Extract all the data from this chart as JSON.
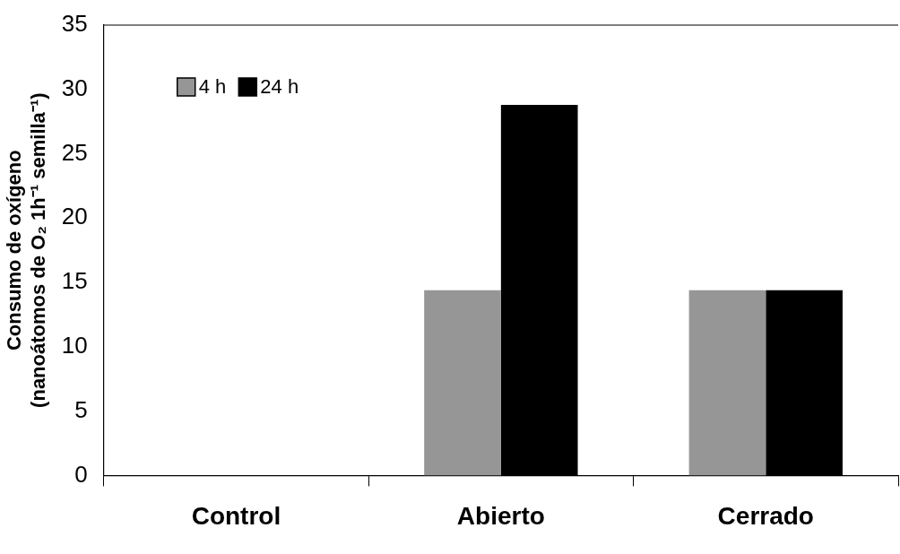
{
  "chart_data": {
    "type": "bar",
    "ylabel": "Consumo de oxígeno\n(nanoátomos de O₂ 1h⁻¹ semilla⁻¹)",
    "categories": [
      "Control",
      "Abierto",
      "Cerrado"
    ],
    "series": [
      {
        "name": "4 h",
        "color": "#969696",
        "values": [
          0,
          14.4,
          14.4
        ]
      },
      {
        "name": "24 h",
        "color": "#000000",
        "values": [
          0,
          28.8,
          14.4
        ]
      }
    ],
    "ylim": [
      0,
      35
    ],
    "yticks": [
      0,
      5,
      10,
      15,
      20,
      25,
      30,
      35
    ],
    "grid": false,
    "legend": "top left"
  }
}
